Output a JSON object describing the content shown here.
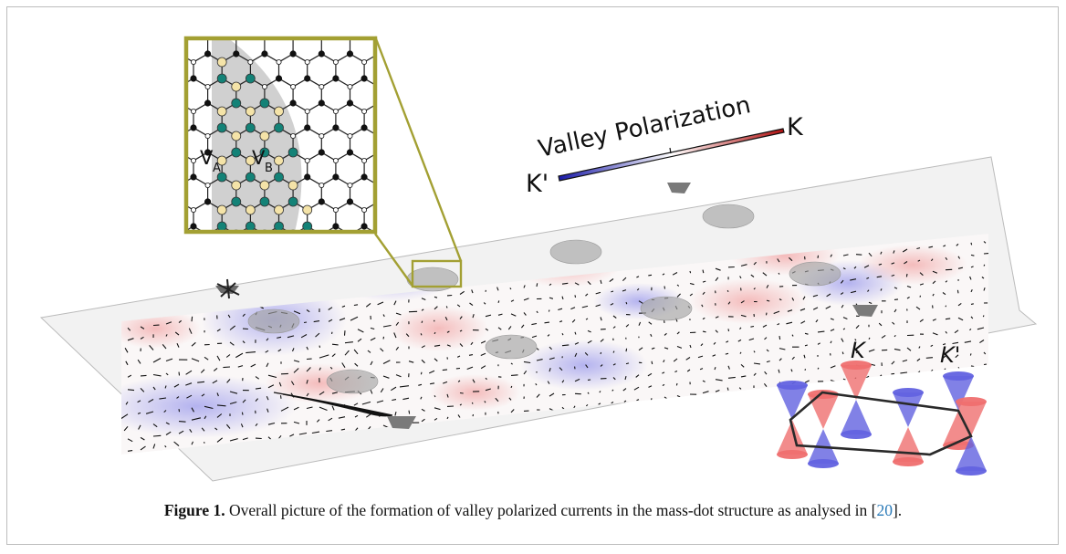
{
  "figure": {
    "colorbar": {
      "title": "Valley Polarization",
      "left_label": "K'",
      "right_label": "K",
      "low_color": "#1a1aa8",
      "mid_color": "#ffffff",
      "high_color": "#b01010"
    },
    "lattice": {
      "site_a_label": "V",
      "site_a_sub": "A",
      "site_b_label": "V",
      "site_b_sub": "B",
      "site_a_color": "#f4e3a8",
      "site_b_color": "#138277",
      "frame_color": "#a3a033"
    },
    "cones": {
      "k_label": "K",
      "kprime_label": "K'",
      "k_color": "#ef6f6f",
      "kprime_color": "#6262e0"
    }
  },
  "caption": {
    "label": "Figure 1.",
    "text": " Overall picture of the formation of valley polarized currents in the mass-dot structure as analysed in ",
    "ref_open": "[",
    "ref_number": "20",
    "ref_close": "]."
  }
}
